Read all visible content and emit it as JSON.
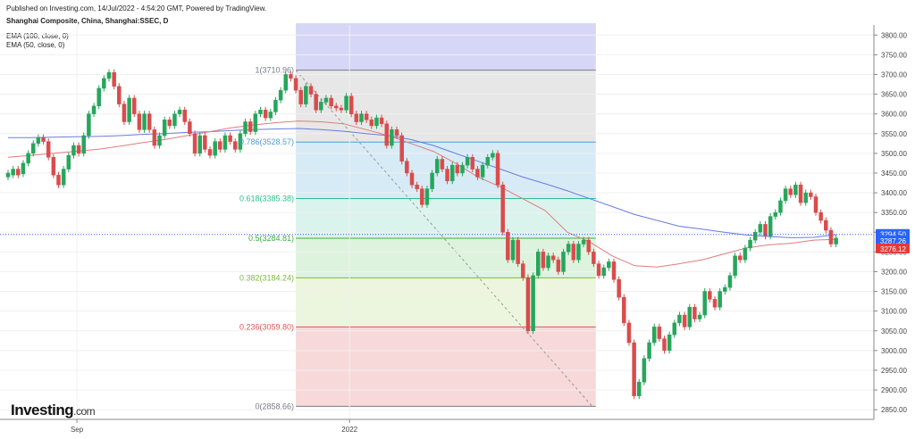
{
  "header": {
    "published": "Published on Investing.com, 14/Jul/2022 - 4:54:20 GMT, Powered by TradingView.",
    "title": "Shanghai Composite, China, Shanghai:SSEC, D",
    "indicators": [
      "EMA (100, close, 0)",
      "EMA (50, close, 0)"
    ]
  },
  "logo": {
    "name": "Investing",
    "tld": ".com"
  },
  "chart_data": {
    "type": "candlestick",
    "y_axis": {
      "range": [
        2830,
        3830
      ],
      "ticks": [
        2850,
        2900,
        2950,
        3000,
        3050,
        3100,
        3150,
        3200,
        3250,
        3300,
        3350,
        3400,
        3450,
        3500,
        3550,
        3600,
        3650,
        3700,
        3750,
        3800
      ],
      "tick_labels": [
        "2850.00",
        "2900.00",
        "2950.00",
        "3000.00",
        "3050.00",
        "3100.00",
        "3150.00",
        "3200.00",
        "3250.00",
        "3300.00",
        "3350.00",
        "3400.00",
        "3450.00",
        "3500.00",
        "3550.00",
        "3600.00",
        "3650.00",
        "3700.00",
        "3750.00",
        "3800.00"
      ]
    },
    "x_axis": {
      "labels": [
        {
          "text": "Sep",
          "bar": 14
        },
        {
          "text": "2022",
          "bar": 68
        }
      ]
    },
    "fibonacci": [
      {
        "label": "1(3710.96)",
        "value": 3710.96,
        "color": "#787b86"
      },
      {
        "label": "0.786(3528.57)",
        "value": 3528.57,
        "color": "#4a9fd4"
      },
      {
        "label": "0.618(3385.38)",
        "value": 3385.38,
        "color": "#2ebf8a"
      },
      {
        "label": "0.5(3284.81)",
        "value": 3284.81,
        "color": "#3fae3f"
      },
      {
        "label": "0.382(3184.24)",
        "value": 3184.24,
        "color": "#7fb83a"
      },
      {
        "label": "0.236(3059.80)",
        "value": 3059.8,
        "color": "#e05555"
      },
      {
        "label": "0(2858.66)",
        "value": 2858.66,
        "color": "#787b86"
      }
    ],
    "fib_zone_colors": [
      "#cfd0f4",
      "#e3e3e3",
      "#cfe8f5",
      "#d5f1ea",
      "#d8f1d8",
      "#e9f5d8",
      "#f6d2d4"
    ],
    "fib_range_bars": [
      57,
      115
    ],
    "price_tags": [
      {
        "label": "3294.50",
        "value": 3294.5,
        "color": "#2962ff"
      },
      {
        "label": "3287.26",
        "value": 3287.26,
        "color": "#2962ff"
      },
      {
        "label": "3276.12",
        "value": 3276.12,
        "color": "#e53935"
      }
    ],
    "colors": {
      "up": "#26a65b",
      "down": "#d94c4c",
      "ema100": "#6b7be0",
      "ema50": "#e07c7c"
    },
    "candles": [
      [
        3440,
        3450
      ],
      [
        3445,
        3460
      ],
      [
        3460,
        3445
      ],
      [
        3448,
        3475
      ],
      [
        3475,
        3500
      ],
      [
        3500,
        3525
      ],
      [
        3525,
        3540
      ],
      [
        3540,
        3530
      ],
      [
        3530,
        3490
      ],
      [
        3490,
        3445
      ],
      [
        3445,
        3420
      ],
      [
        3420,
        3460
      ],
      [
        3460,
        3495
      ],
      [
        3495,
        3520
      ],
      [
        3520,
        3500
      ],
      [
        3500,
        3545
      ],
      [
        3545,
        3600
      ],
      [
        3600,
        3620
      ],
      [
        3620,
        3665
      ],
      [
        3665,
        3690
      ],
      [
        3690,
        3705
      ],
      [
        3705,
        3670
      ],
      [
        3670,
        3625
      ],
      [
        3625,
        3580
      ],
      [
        3580,
        3640
      ],
      [
        3640,
        3600
      ],
      [
        3600,
        3560
      ],
      [
        3560,
        3600
      ],
      [
        3600,
        3560
      ],
      [
        3560,
        3520
      ],
      [
        3520,
        3545
      ],
      [
        3545,
        3585
      ],
      [
        3585,
        3570
      ],
      [
        3570,
        3600
      ],
      [
        3600,
        3610
      ],
      [
        3610,
        3580
      ],
      [
        3580,
        3550
      ],
      [
        3550,
        3500
      ],
      [
        3500,
        3545
      ],
      [
        3545,
        3510
      ],
      [
        3510,
        3495
      ],
      [
        3495,
        3530
      ],
      [
        3530,
        3510
      ],
      [
        3510,
        3545
      ],
      [
        3545,
        3530
      ],
      [
        3530,
        3510
      ],
      [
        3510,
        3550
      ],
      [
        3550,
        3580
      ],
      [
        3580,
        3555
      ],
      [
        3555,
        3600
      ],
      [
        3600,
        3610
      ],
      [
        3610,
        3590
      ],
      [
        3590,
        3605
      ],
      [
        3605,
        3635
      ],
      [
        3635,
        3660
      ],
      [
        3660,
        3700
      ],
      [
        3700,
        3690
      ],
      [
        3690,
        3660
      ],
      [
        3660,
        3625
      ],
      [
        3625,
        3670
      ],
      [
        3670,
        3650
      ],
      [
        3650,
        3610
      ],
      [
        3610,
        3630
      ],
      [
        3630,
        3640
      ],
      [
        3640,
        3620
      ],
      [
        3620,
        3615
      ],
      [
        3615,
        3610
      ],
      [
        3610,
        3645
      ],
      [
        3645,
        3600
      ],
      [
        3600,
        3580
      ],
      [
        3580,
        3600
      ],
      [
        3600,
        3585
      ],
      [
        3585,
        3570
      ],
      [
        3570,
        3590
      ],
      [
        3590,
        3575
      ],
      [
        3575,
        3520
      ],
      [
        3520,
        3560
      ],
      [
        3560,
        3545
      ],
      [
        3545,
        3480
      ],
      [
        3480,
        3450
      ],
      [
        3450,
        3420
      ],
      [
        3420,
        3410
      ],
      [
        3410,
        3370
      ],
      [
        3370,
        3410
      ],
      [
        3410,
        3450
      ],
      [
        3450,
        3485
      ],
      [
        3485,
        3460
      ],
      [
        3460,
        3430
      ],
      [
        3430,
        3470
      ],
      [
        3470,
        3450
      ],
      [
        3450,
        3470
      ],
      [
        3470,
        3490
      ],
      [
        3490,
        3460
      ],
      [
        3460,
        3440
      ],
      [
        3440,
        3470
      ],
      [
        3470,
        3490
      ],
      [
        3490,
        3500
      ],
      [
        3500,
        3420
      ],
      [
        3420,
        3300
      ],
      [
        3300,
        3230
      ],
      [
        3230,
        3280
      ],
      [
        3280,
        3220
      ],
      [
        3220,
        3185
      ],
      [
        3185,
        3050
      ],
      [
        3050,
        3190
      ],
      [
        3190,
        3250
      ],
      [
        3250,
        3210
      ],
      [
        3210,
        3240
      ],
      [
        3240,
        3230
      ],
      [
        3230,
        3200
      ],
      [
        3200,
        3250
      ],
      [
        3250,
        3270
      ],
      [
        3270,
        3230
      ],
      [
        3230,
        3270
      ],
      [
        3270,
        3280
      ],
      [
        3280,
        3250
      ],
      [
        3250,
        3220
      ],
      [
        3220,
        3190
      ],
      [
        3190,
        3210
      ],
      [
        3210,
        3225
      ],
      [
        3225,
        3180
      ],
      [
        3180,
        3135
      ],
      [
        3135,
        3070
      ],
      [
        3070,
        3020
      ],
      [
        3020,
        2885
      ],
      [
        2885,
        2920
      ],
      [
        2920,
        2980
      ],
      [
        2980,
        3020
      ],
      [
        3020,
        3060
      ],
      [
        3060,
        3030
      ],
      [
        3030,
        3000
      ],
      [
        3000,
        3040
      ],
      [
        3040,
        3070
      ],
      [
        3070,
        3090
      ],
      [
        3090,
        3060
      ],
      [
        3060,
        3110
      ],
      [
        3110,
        3080
      ],
      [
        3080,
        3090
      ],
      [
        3090,
        3150
      ],
      [
        3150,
        3130
      ],
      [
        3130,
        3110
      ],
      [
        3110,
        3150
      ],
      [
        3150,
        3160
      ],
      [
        3160,
        3190
      ],
      [
        3190,
        3240
      ],
      [
        3240,
        3230
      ],
      [
        3230,
        3260
      ],
      [
        3260,
        3280
      ],
      [
        3280,
        3300
      ],
      [
        3300,
        3320
      ],
      [
        3320,
        3290
      ],
      [
        3290,
        3340
      ],
      [
        3340,
        3350
      ],
      [
        3350,
        3380
      ],
      [
        3380,
        3410
      ],
      [
        3410,
        3395
      ],
      [
        3395,
        3420
      ],
      [
        3420,
        3375
      ],
      [
        3375,
        3400
      ],
      [
        3400,
        3390
      ],
      [
        3390,
        3350
      ],
      [
        3350,
        3330
      ],
      [
        3330,
        3305
      ],
      [
        3305,
        3270
      ],
      [
        3270,
        3285
      ]
    ],
    "ema100": [
      3540,
      3540,
      3541,
      3542,
      3543,
      3545,
      3548,
      3550,
      3553,
      3555,
      3558,
      3560,
      3562,
      3563,
      3560,
      3556,
      3550,
      3545,
      3535,
      3520,
      3500,
      3480,
      3460,
      3440,
      3423,
      3405,
      3385,
      3365,
      3345,
      3330,
      3315,
      3308,
      3300,
      3293,
      3289,
      3286,
      3287,
      3294
    ],
    "ema50": [
      3490,
      3495,
      3500,
      3505,
      3510,
      3518,
      3527,
      3535,
      3545,
      3555,
      3565,
      3572,
      3578,
      3582,
      3580,
      3575,
      3560,
      3545,
      3525,
      3505,
      3475,
      3440,
      3415,
      3385,
      3355,
      3300,
      3275,
      3240,
      3215,
      3212,
      3220,
      3230,
      3245,
      3260,
      3268,
      3272,
      3280,
      3282
    ]
  }
}
